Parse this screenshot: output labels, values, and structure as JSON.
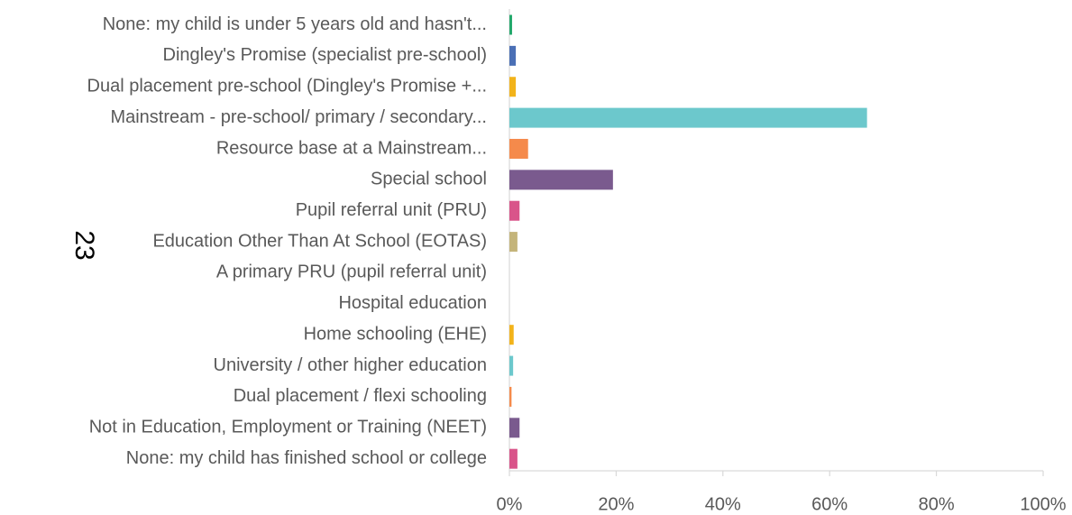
{
  "chart_data": {
    "type": "hbar",
    "categories": [
      "None: my child is under 5 years old and hasn't...",
      "Dingley's Promise (specialist pre-school)",
      "Dual placement pre-school (Dingley's Promise +...",
      "Mainstream - pre-school/ primary / secondary...",
      "Resource base at a Mainstream...",
      "Special school",
      "Pupil referral unit (PRU)",
      "Education Other Than At School (EOTAS)",
      "A primary PRU (pupil referral unit)",
      "Hospital education",
      "Home schooling (EHE)",
      "University / other higher education",
      "Dual placement / flexi schooling",
      "Not in Education, Employment or Training (NEET)",
      "None: my child has finished school or college"
    ],
    "values": [
      0.5,
      1.2,
      1.2,
      67,
      3.5,
      19.4,
      1.9,
      1.5,
      0,
      0,
      0.8,
      0.7,
      0.4,
      1.9,
      1.5
    ],
    "colors": [
      "#22a86b",
      "#4a6fb5",
      "#f2b31a",
      "#6cc8cc",
      "#f58a4b",
      "#7a5a8e",
      "#d9548a",
      "#c4b47a",
      "#22a86b",
      "#4a6fb5",
      "#f2b31a",
      "#6cc8cc",
      "#f58a4b",
      "#7a5a8e",
      "#d9548a"
    ],
    "xlim": [
      0,
      100
    ],
    "xticks": [
      {
        "value": 0,
        "label": "0%"
      },
      {
        "value": 20,
        "label": "20%"
      },
      {
        "value": 40,
        "label": "40%"
      },
      {
        "value": 60,
        "label": "60%"
      },
      {
        "value": 80,
        "label": "80%"
      },
      {
        "value": 100,
        "label": "100%"
      }
    ],
    "annotation": "23"
  }
}
